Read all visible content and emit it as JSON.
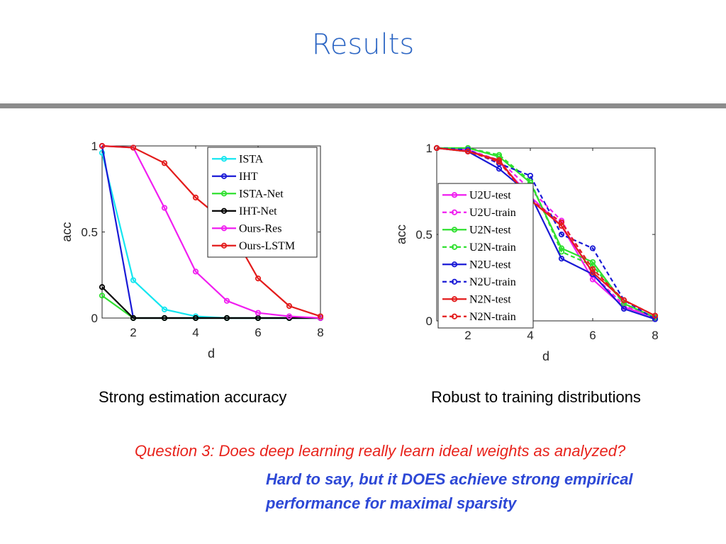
{
  "slide": {
    "title": "Results",
    "caption_left": "Strong estimation accuracy",
    "caption_right": "Robust to training distributions",
    "question": "Question 3: Does deep learning really learn ideal weights as analyzed?",
    "answer": "Hard to say, but it DOES achieve strong empirical performance for maximal sparsity"
  },
  "colors": {
    "title": "#2e67c4",
    "question": "#e8231c",
    "answer": "#2d48d6",
    "rule": "#8c8c8c"
  },
  "chart_data": [
    {
      "type": "line",
      "xlabel": "d",
      "ylabel": "acc",
      "xlim": [
        1,
        8
      ],
      "ylim": [
        0,
        1
      ],
      "xticks": [
        2,
        4,
        6,
        8
      ],
      "yticks": [
        0,
        0.5,
        1
      ],
      "ytick_labels": [
        "0",
        "0.5",
        "1"
      ],
      "grid": false,
      "legend_position": "top-right",
      "x": [
        1,
        2,
        3,
        4,
        5,
        6,
        7,
        8
      ],
      "series": [
        {
          "name": "ISTA",
          "color": "#14e6f0",
          "dash": false,
          "values": [
            0.96,
            0.22,
            0.05,
            0.01,
            0.0,
            0.0,
            0.0,
            0.0
          ]
        },
        {
          "name": "IHT",
          "color": "#1a1ad6",
          "dash": false,
          "values": [
            1.0,
            0.0,
            0.0,
            0.0,
            0.0,
            0.0,
            0.0,
            0.0
          ]
        },
        {
          "name": "ISTA-Net",
          "color": "#2fe02f",
          "dash": false,
          "values": [
            0.13,
            0.0,
            0.0,
            0.0,
            0.0,
            0.0,
            0.0,
            0.0
          ]
        },
        {
          "name": "IHT-Net",
          "color": "#000000",
          "dash": false,
          "values": [
            0.18,
            0.0,
            0.0,
            0.0,
            0.0,
            0.0,
            0.0,
            0.0
          ]
        },
        {
          "name": "Ours-Res",
          "color": "#f01ef0",
          "dash": false,
          "values": [
            1.0,
            0.99,
            0.64,
            0.27,
            0.1,
            0.03,
            0.01,
            0.0
          ]
        },
        {
          "name": "Ours-LSTM",
          "color": "#e31b1b",
          "dash": false,
          "values": [
            1.0,
            0.99,
            0.9,
            0.7,
            0.55,
            0.23,
            0.07,
            0.01
          ]
        }
      ]
    },
    {
      "type": "line",
      "xlabel": "d",
      "ylabel": "acc",
      "xlim": [
        1,
        8
      ],
      "ylim": [
        0,
        1
      ],
      "xticks": [
        2,
        4,
        6,
        8
      ],
      "yticks": [
        0,
        0.5,
        1
      ],
      "ytick_labels": [
        "0",
        "0.5",
        "1"
      ],
      "grid": false,
      "legend_position": "center-left",
      "x": [
        1,
        2,
        3,
        4,
        5,
        6,
        7,
        8
      ],
      "series": [
        {
          "name": "U2U-test",
          "color": "#f01ef0",
          "dash": false,
          "values": [
            1.0,
            0.99,
            0.92,
            0.72,
            0.55,
            0.24,
            0.08,
            0.02
          ]
        },
        {
          "name": "U2U-train",
          "color": "#f01ef0",
          "dash": true,
          "values": [
            1.0,
            0.99,
            0.93,
            0.76,
            0.58,
            0.27,
            0.09,
            0.02
          ]
        },
        {
          "name": "U2N-test",
          "color": "#2fe02f",
          "dash": false,
          "values": [
            1.0,
            1.0,
            0.95,
            0.8,
            0.42,
            0.34,
            0.1,
            0.02
          ]
        },
        {
          "name": "U2N-train",
          "color": "#2fe02f",
          "dash": true,
          "values": [
            1.0,
            1.0,
            0.96,
            0.81,
            0.4,
            0.32,
            0.1,
            0.02
          ]
        },
        {
          "name": "N2U-test",
          "color": "#1a1ad6",
          "dash": false,
          "values": [
            1.0,
            0.98,
            0.88,
            0.73,
            0.36,
            0.27,
            0.07,
            0.01
          ]
        },
        {
          "name": "N2U-train",
          "color": "#1a1ad6",
          "dash": true,
          "values": [
            1.0,
            0.99,
            0.91,
            0.84,
            0.5,
            0.42,
            0.12,
            0.01
          ]
        },
        {
          "name": "N2N-test",
          "color": "#e31b1b",
          "dash": false,
          "values": [
            1.0,
            0.98,
            0.93,
            0.7,
            0.55,
            0.28,
            0.12,
            0.03
          ]
        },
        {
          "name": "N2N-train",
          "color": "#e31b1b",
          "dash": true,
          "values": [
            1.0,
            0.98,
            0.92,
            0.7,
            0.57,
            0.3,
            0.12,
            0.03
          ]
        }
      ]
    }
  ]
}
